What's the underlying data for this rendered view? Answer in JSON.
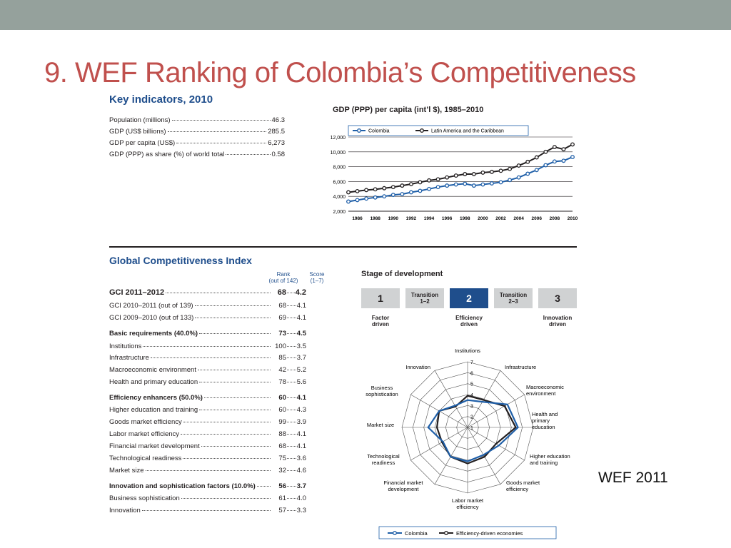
{
  "slide": {
    "title": "9. WEF Ranking of Colombia’s Competitiveness",
    "credit": "WEF 2011"
  },
  "key_indicators": {
    "heading": "Key indicators, 2010",
    "items": [
      {
        "label": "Population (millions)",
        "value": "46.3"
      },
      {
        "label": "GDP (US$ billions)",
        "value": "285.5"
      },
      {
        "label": "GDP per capita (US$)",
        "value": "6,273"
      },
      {
        "label": "GDP (PPP) as share (%) of world total",
        "value": "0.58"
      }
    ]
  },
  "gci": {
    "heading": "Global Competitiveness Index",
    "rank_head": "Rank",
    "rank_sub": "(out of 142)",
    "score_head": "Score",
    "score_sub": "(1–7)",
    "rows": [
      {
        "label": "GCI 2011–2012",
        "rank": "68",
        "score": "4.2",
        "style": "big"
      },
      {
        "label": "GCI 2010–2011 (out of 139)",
        "rank": "68",
        "score": "4.1",
        "style": ""
      },
      {
        "label": "GCI 2009–2010 (out of 133)",
        "rank": "69",
        "score": "4.1",
        "style": ""
      },
      {
        "label": "Basic requirements (40.0%)",
        "rank": "73",
        "score": "4.5",
        "style": "bold"
      },
      {
        "label": "Institutions",
        "rank": "100",
        "score": "3.5",
        "style": ""
      },
      {
        "label": "Infrastructure",
        "rank": "85",
        "score": "3.7",
        "style": ""
      },
      {
        "label": "Macroeconomic environment",
        "rank": "42",
        "score": "5.2",
        "style": ""
      },
      {
        "label": "Health and primary education",
        "rank": "78",
        "score": "5.6",
        "style": ""
      },
      {
        "label": "Efficiency enhancers (50.0%)",
        "rank": "60",
        "score": "4.1",
        "style": "bold"
      },
      {
        "label": "Higher education and training",
        "rank": "60",
        "score": "4.3",
        "style": ""
      },
      {
        "label": "Goods market efficiency",
        "rank": "99",
        "score": "3.9",
        "style": ""
      },
      {
        "label": "Labor market efficiency",
        "rank": "88",
        "score": "4.1",
        "style": ""
      },
      {
        "label": "Financial market development",
        "rank": "68",
        "score": "4.1",
        "style": ""
      },
      {
        "label": "Technological readiness",
        "rank": "75",
        "score": "3.6",
        "style": ""
      },
      {
        "label": "Market size",
        "rank": "32",
        "score": "4.6",
        "style": ""
      },
      {
        "label": "Innovation and sophistication factors (10.0%)",
        "rank": "56",
        "score": "3.7",
        "style": "bold"
      },
      {
        "label": "Business sophistication",
        "rank": "61",
        "score": "4.0",
        "style": ""
      },
      {
        "label": "Innovation",
        "rank": "57",
        "score": "3.3",
        "style": ""
      }
    ]
  },
  "stage": {
    "heading": "Stage of development",
    "boxes": [
      {
        "text": "1",
        "kind": "num",
        "active": false
      },
      {
        "text": "Transition\n1–2",
        "kind": "tr",
        "active": false
      },
      {
        "text": "2",
        "kind": "num",
        "active": true
      },
      {
        "text": "Transition\n2–3",
        "kind": "tr",
        "active": false
      },
      {
        "text": "3",
        "kind": "num",
        "active": false
      }
    ],
    "captions": [
      {
        "text": "Factor\ndriven",
        "under": 0
      },
      {
        "text": "Efficiency\ndriven",
        "under": 2
      },
      {
        "text": "Innovation\ndriven",
        "under": 4
      }
    ]
  },
  "chart_data": [
    {
      "type": "line",
      "title": "GDP (PPP) per capita (int’l $), 1985–2010",
      "x": [
        1985,
        1986,
        1987,
        1988,
        1989,
        1990,
        1991,
        1992,
        1993,
        1994,
        1995,
        1996,
        1997,
        1998,
        1999,
        2000,
        2001,
        2002,
        2003,
        2004,
        2005,
        2006,
        2007,
        2008,
        2009,
        2010
      ],
      "x_ticks": [
        "1986",
        "1988",
        "1990",
        "1992",
        "1994",
        "1996",
        "1998",
        "2000",
        "2002",
        "2004",
        "2006",
        "2008",
        "2010"
      ],
      "y_ticks": [
        "2,000",
        "4,000",
        "6,000",
        "8,000",
        "10,000",
        "12,000"
      ],
      "ylim": [
        2000,
        12000
      ],
      "legend_position": "top",
      "series": [
        {
          "name": "Colombia",
          "color": "#1f5fa8",
          "values": [
            3300,
            3500,
            3700,
            3850,
            4000,
            4200,
            4300,
            4550,
            4750,
            5000,
            5250,
            5450,
            5600,
            5700,
            5450,
            5600,
            5750,
            5900,
            6200,
            6550,
            7050,
            7550,
            8200,
            8700,
            8800,
            9300
          ]
        },
        {
          "name": "Latin America and the Caribbean",
          "color": "#231f20",
          "values": [
            4550,
            4700,
            4850,
            4950,
            5100,
            5250,
            5450,
            5650,
            5900,
            6150,
            6300,
            6550,
            6800,
            7000,
            7000,
            7200,
            7300,
            7450,
            7700,
            8150,
            8650,
            9250,
            10000,
            10650,
            10350,
            11000
          ]
        }
      ]
    },
    {
      "type": "radar",
      "axes": [
        "Institutions",
        "Infrastructure",
        "Macroeconomic environment",
        "Health and primary education",
        "Higher education and training",
        "Goods market efficiency",
        "Labor market efficiency",
        "Financial market development",
        "Technological readiness",
        "Market size",
        "Business sophistication",
        "Innovation"
      ],
      "scale": [
        "1",
        "2",
        "3",
        "4",
        "5",
        "6",
        "7"
      ],
      "range": [
        1,
        7
      ],
      "legend_position": "bottom",
      "series": [
        {
          "name": "Colombia",
          "color": "#1f5fa8",
          "values": [
            3.5,
            3.7,
            5.2,
            5.6,
            4.3,
            3.9,
            4.1,
            4.1,
            3.6,
            4.6,
            4.0,
            3.3
          ]
        },
        {
          "name": "Efficiency-driven economies",
          "color": "#231f20",
          "values": [
            3.9,
            3.9,
            4.9,
            5.4,
            4.0,
            4.1,
            4.3,
            4.1,
            3.7,
            3.8,
            4.0,
            3.2
          ]
        }
      ]
    }
  ]
}
